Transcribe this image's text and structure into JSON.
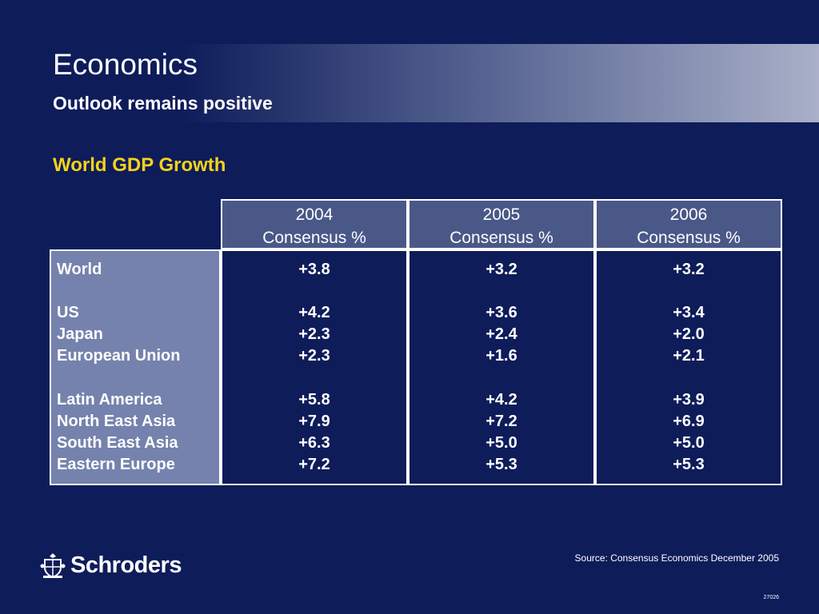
{
  "slide": {
    "title": "Economics",
    "subtitle": "Outlook remains positive",
    "section_title": "World GDP Growth"
  },
  "table": {
    "columns": [
      {
        "year": "2004",
        "label": "Consensus %"
      },
      {
        "year": "2005",
        "label": "Consensus %"
      },
      {
        "year": "2006",
        "label": "Consensus %"
      }
    ],
    "rows": [
      {
        "label": "World",
        "values": [
          "+3.8",
          "+3.2",
          "+3.2"
        ]
      },
      {
        "label": "US",
        "values": [
          "+4.2",
          "+3.6",
          "+3.4"
        ]
      },
      {
        "label": "Japan",
        "values": [
          "+2.3",
          "+2.4",
          "+2.0"
        ]
      },
      {
        "label": "European Union",
        "values": [
          "+2.3",
          "+1.6",
          "+2.1"
        ]
      },
      {
        "label": "Latin America",
        "values": [
          "+5.8",
          "+4.2",
          "+3.9"
        ]
      },
      {
        "label": "North East Asia",
        "values": [
          "+7.9",
          "+7.2",
          "+6.9"
        ]
      },
      {
        "label": "South East Asia",
        "values": [
          "+6.3",
          "+5.0",
          "+5.0"
        ]
      },
      {
        "label": "Eastern Europe",
        "values": [
          "+7.2",
          "+5.3",
          "+5.3"
        ]
      }
    ]
  },
  "footer": {
    "brand": "Schroders",
    "source": "Source: Consensus Economics December 2005",
    "code": "27026"
  },
  "colors": {
    "background": "#0e1c5a",
    "accent": "#f5d21a",
    "header_cell": "#4a5888",
    "label_column": "#7582ad"
  },
  "icons": [
    "schroders-crest-icon"
  ]
}
